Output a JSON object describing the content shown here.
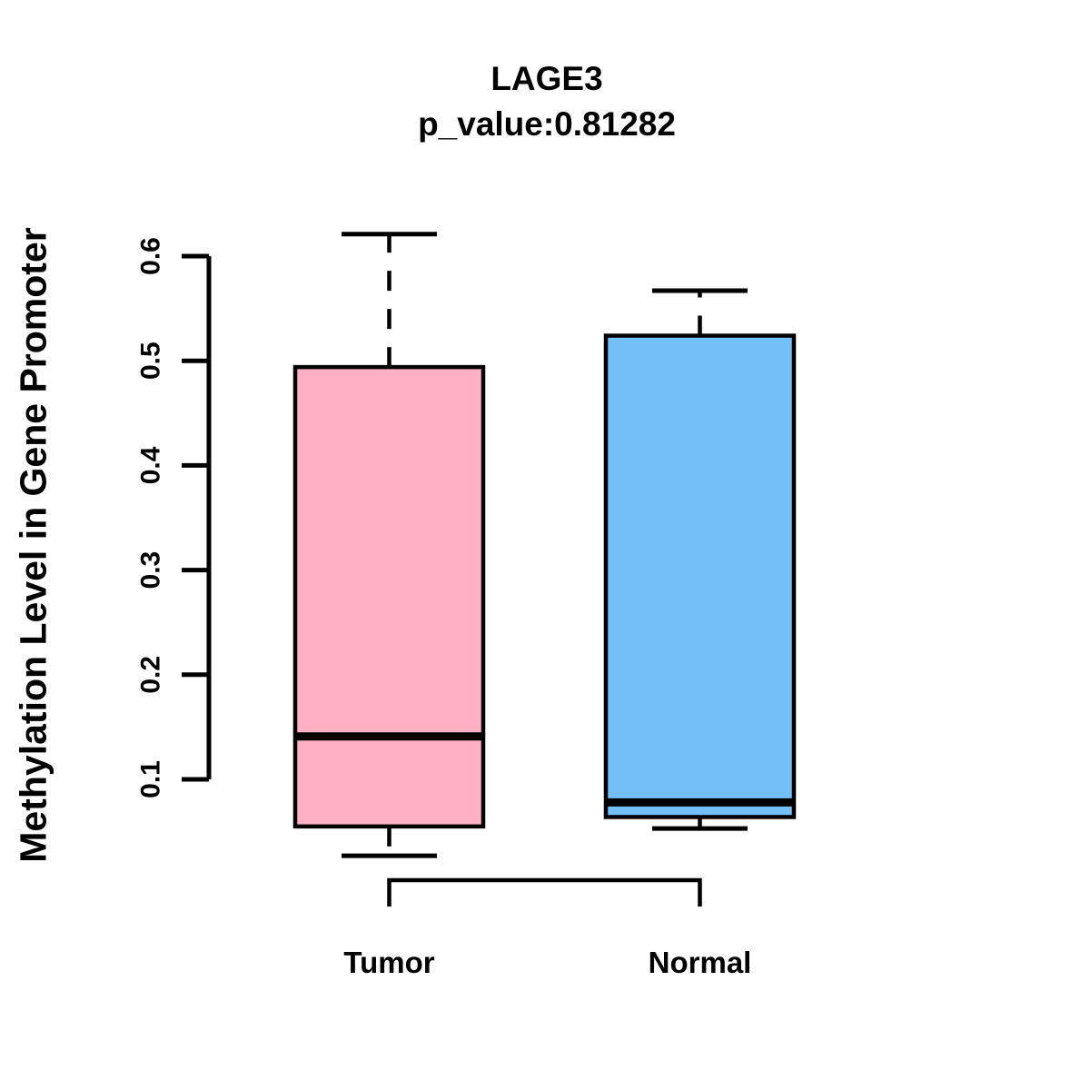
{
  "page": {
    "background": "#FFFFFF",
    "text_color": "#000000"
  },
  "chart_data": {
    "type": "boxplot",
    "title": "LAGE3",
    "subtitle": "p_value:0.81282",
    "gene": "LAGE3",
    "p_value": 0.81282,
    "ylabel": "Methylation Level in Gene Promoter",
    "xlabel": "",
    "categories": [
      "Tumor",
      "Normal"
    ],
    "yticks": [
      "0.1",
      "0.2",
      "0.3",
      "0.4",
      "0.5",
      "0.6"
    ],
    "ylim": [
      0.1,
      0.6
    ],
    "grid": false,
    "legend": "none",
    "series": [
      {
        "name": "Tumor",
        "color": "#FFB0C4",
        "whisker_low": 0.027,
        "q1": 0.055,
        "median": 0.141,
        "q3": 0.494,
        "whisker_high": 0.621
      },
      {
        "name": "Normal",
        "color": "#74BFF8",
        "whisker_low": 0.053,
        "q1": 0.064,
        "median": 0.078,
        "q3": 0.524,
        "whisker_high": 0.567
      }
    ],
    "comparison_bracket": {
      "between": [
        "Tumor",
        "Normal"
      ]
    }
  }
}
